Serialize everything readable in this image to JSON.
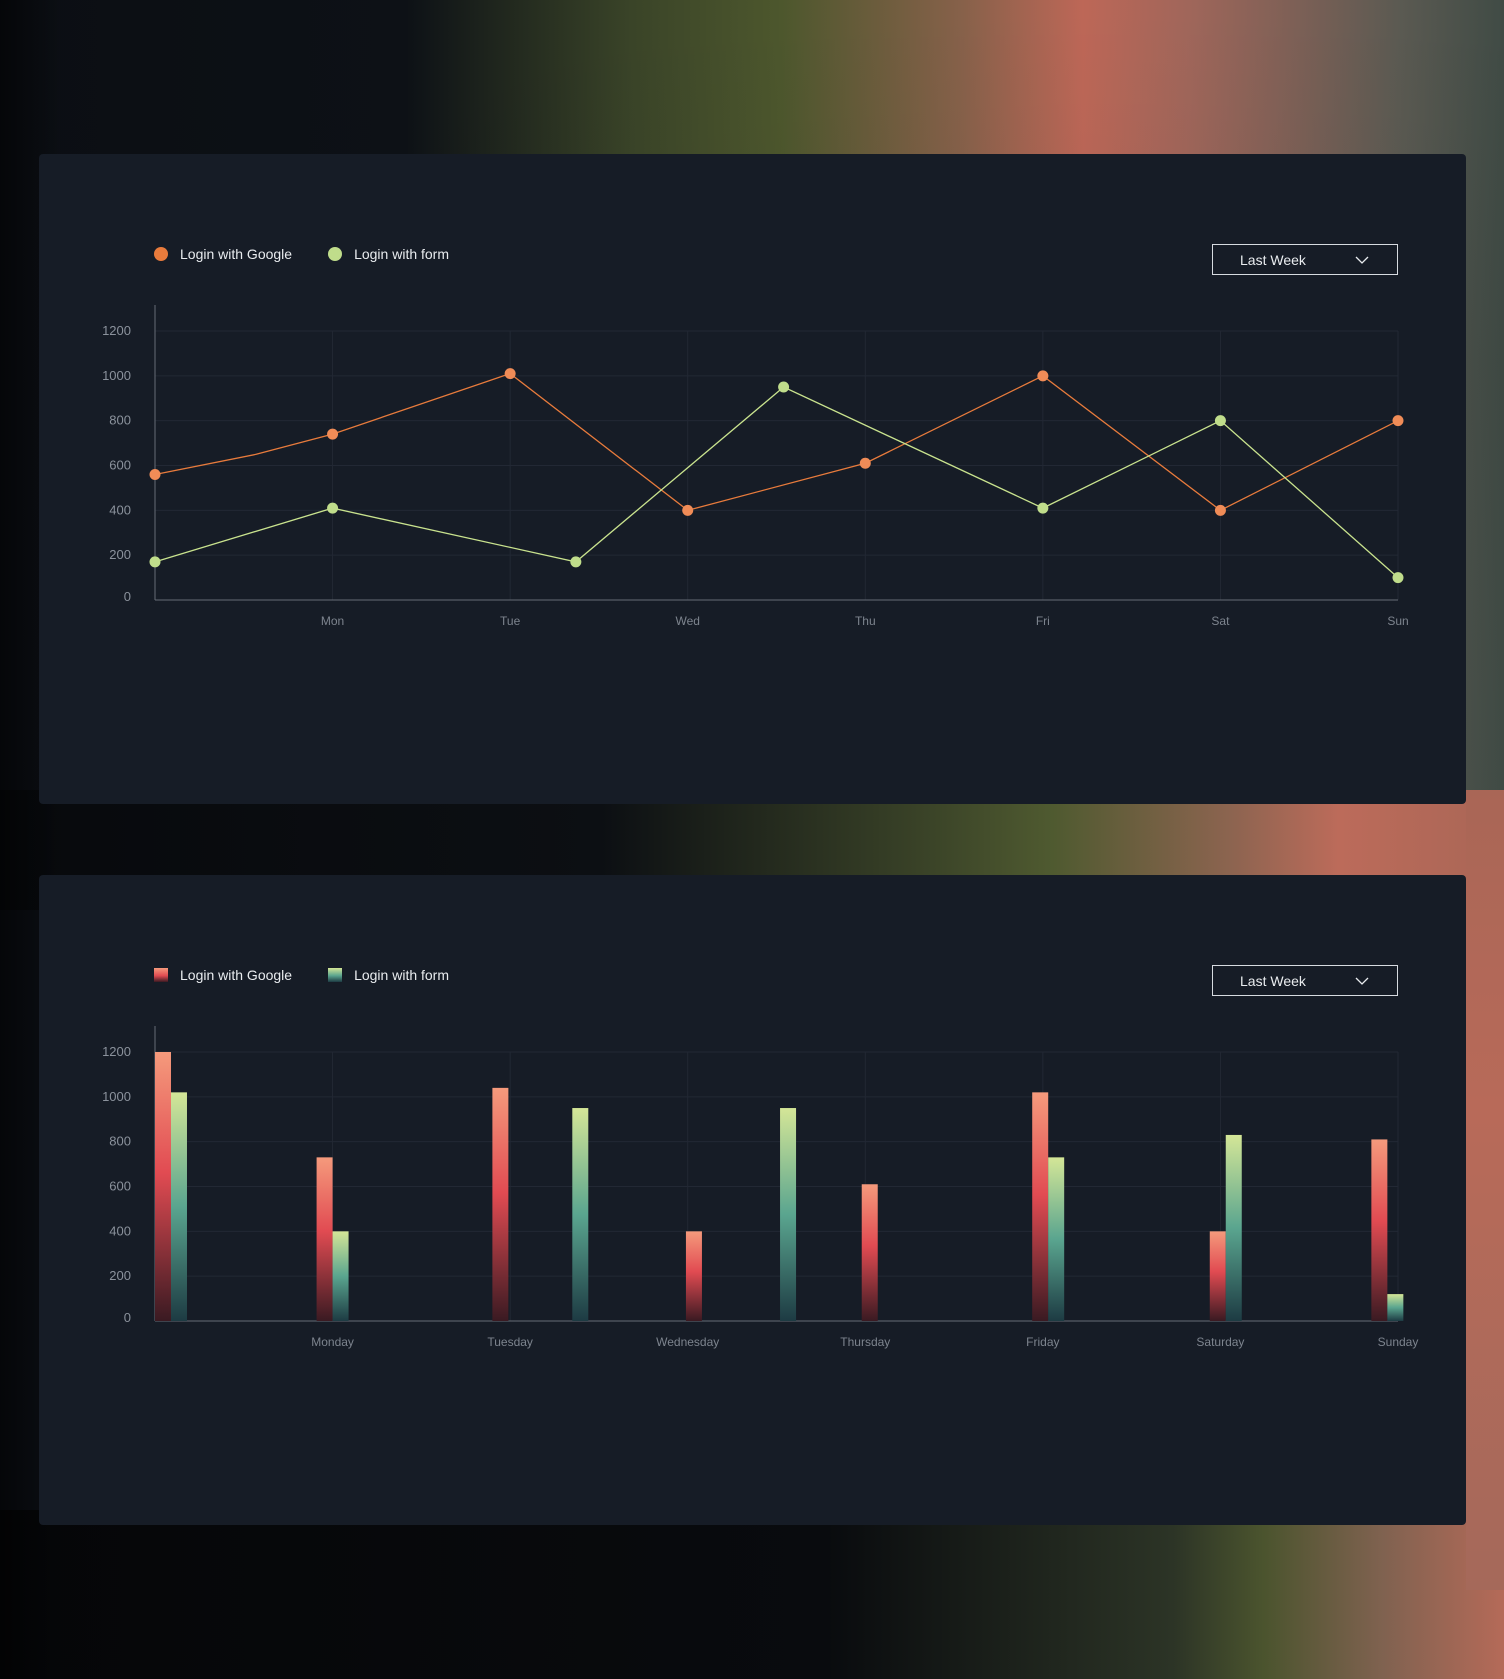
{
  "colors": {
    "google_line": "#e87b3c",
    "google_point": "#f08c57",
    "form_line": "#c9e38e",
    "form_point": "#c0dd8b",
    "google_bar_top": "#f59a7c",
    "google_bar_mid": "#e14b52",
    "google_bar_bottom": "#3a1a22",
    "form_bar_top": "#d4e697",
    "form_bar_mid": "#5aa58f",
    "form_bar_bottom": "#1d3b43",
    "axis": "#666c75",
    "grid": "#222834"
  },
  "line_panel": {
    "legend": [
      {
        "label": "Login with Google",
        "icon": "orange-dot-icon"
      },
      {
        "label": "Login with form",
        "icon": "green-dot-icon"
      }
    ],
    "select": {
      "value": "Last Week",
      "icon": "chevron-down-icon"
    }
  },
  "bar_panel": {
    "legend": [
      {
        "label": "Login with Google",
        "icon": "red-gradient-square-icon"
      },
      {
        "label": "Login with form",
        "icon": "green-gradient-square-icon"
      }
    ],
    "select": {
      "value": "Last Week",
      "icon": "chevron-down-icon"
    }
  },
  "chart_data": [
    {
      "type": "line",
      "title": "",
      "xlabel": "",
      "ylabel": "",
      "ylim": [
        0,
        1200
      ],
      "yticks": [
        0,
        200,
        400,
        600,
        800,
        1000,
        1200
      ],
      "xlim": [
        0,
        7
      ],
      "xtick_positions": [
        1,
        2,
        3,
        4,
        5,
        6,
        7
      ],
      "xtick_labels": [
        "Mon",
        "Tue",
        "Wed",
        "Thu",
        "Fri",
        "Sat",
        "Sun"
      ],
      "grid": true,
      "legend_position": "top-left",
      "series": [
        {
          "name": "Login with Google",
          "x": [
            0,
            1,
            2,
            3,
            4,
            5,
            6,
            7
          ],
          "y": [
            560,
            740,
            1010,
            400,
            610,
            1000,
            400,
            800
          ],
          "line_only_points": [
            [
              0.57,
              650
            ]
          ]
        },
        {
          "name": "Login with form",
          "x": [
            0,
            1,
            2.37,
            3.54,
            5,
            6,
            7
          ],
          "y": [
            170,
            410,
            170,
            950,
            410,
            800,
            100
          ]
        }
      ]
    },
    {
      "type": "bar",
      "title": "",
      "xlabel": "",
      "ylabel": "",
      "ylim": [
        0,
        1200
      ],
      "yticks": [
        0,
        200,
        400,
        600,
        800,
        1000,
        1200
      ],
      "xtick_positions": [
        1,
        2,
        3,
        4,
        5,
        6,
        7
      ],
      "xtick_labels": [
        "Monday",
        "Tuesday",
        "Wednesday",
        "Thursday",
        "Friday",
        "Saturday",
        "Sunday"
      ],
      "grid": true,
      "legend_position": "top-left",
      "series": [
        {
          "name": "Login with Google",
          "x": [
            0,
            0.91,
            1.9,
            2.99,
            3.98,
            4.94,
            5.94,
            6.85
          ],
          "values": [
            1200,
            730,
            1040,
            400,
            610,
            1020,
            400,
            810
          ]
        },
        {
          "name": "Login with form",
          "x": [
            0.09,
            1.0,
            2.35,
            3.52,
            5.03,
            6.03,
            6.94
          ],
          "values": [
            1020,
            400,
            950,
            950,
            730,
            830,
            120
          ]
        }
      ]
    }
  ]
}
